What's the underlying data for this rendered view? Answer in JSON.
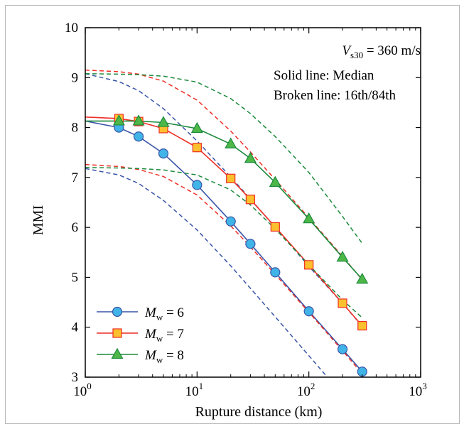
{
  "chart_data": {
    "type": "line",
    "xscale": "log",
    "xlim": [
      1,
      1000
    ],
    "ylim": [
      3,
      10
    ],
    "xlabel": "Rupture distance (km)",
    "ylabel": "MMI",
    "x_ticks": [
      {
        "value": 1,
        "base": "10",
        "exp": "0"
      },
      {
        "value": 10,
        "base": "10",
        "exp": "1"
      },
      {
        "value": 100,
        "base": "10",
        "exp": "2"
      },
      {
        "value": 1000,
        "base": "10",
        "exp": "3"
      }
    ],
    "y_ticks": [
      "3",
      "4",
      "5",
      "6",
      "7",
      "8",
      "9",
      "10"
    ],
    "annotations": {
      "vs30": {
        "var": "V",
        "sub": "s30",
        "rest": " = 360 m/s"
      },
      "solid": "Solid line: Median",
      "broken": "Broken line: 16th/84th"
    },
    "legend_position": "bottom-left",
    "series": [
      {
        "name": "Mw = 6",
        "legend": {
          "var": "M",
          "sub": "w",
          "rest": " = 6"
        },
        "color": "#3a55a8",
        "marker_fill": "#40b4e6",
        "marker": "circle",
        "curve_x": [
          1,
          2,
          3,
          5,
          10,
          20,
          30,
          50,
          100,
          200,
          300
        ],
        "median": [
          8.13,
          8.0,
          7.82,
          7.48,
          6.85,
          6.12,
          5.67,
          5.1,
          4.32,
          3.56,
          3.11
        ],
        "p84": [
          9.08,
          8.92,
          8.74,
          8.38,
          7.73,
          7.01,
          6.57,
          6.0,
          5.22,
          4.48,
          4.02
        ],
        "p16": [
          7.18,
          7.05,
          6.88,
          6.54,
          5.95,
          5.23,
          4.78,
          4.21,
          3.43,
          2.65,
          2.18
        ],
        "marker_x": [
          2,
          3,
          5,
          10,
          20,
          30,
          50,
          100,
          200,
          300
        ]
      },
      {
        "name": "Mw = 7",
        "legend": {
          "var": "M",
          "sub": "w",
          "rest": " = 7"
        },
        "color": "#ee2d24",
        "marker_fill": "#fbc02d",
        "marker": "square",
        "curve_x": [
          1,
          2,
          3,
          5,
          10,
          20,
          30,
          50,
          100,
          200,
          300
        ],
        "median": [
          8.21,
          8.18,
          8.12,
          7.98,
          7.6,
          6.98,
          6.56,
          6.01,
          5.25,
          4.48,
          4.03
        ],
        "p84": [
          9.15,
          9.12,
          9.07,
          8.93,
          8.55,
          7.93,
          7.51,
          6.96,
          6.19,
          5.42,
          4.95
        ],
        "p16": [
          7.26,
          7.22,
          7.16,
          7.02,
          6.65,
          6.03,
          5.61,
          5.06,
          4.3,
          3.53,
          3.07
        ],
        "marker_x": [
          2,
          3,
          5,
          10,
          20,
          30,
          50,
          100,
          200,
          300
        ]
      },
      {
        "name": "Mw = 8",
        "legend": {
          "var": "M",
          "sub": "w",
          "rest": " = 8"
        },
        "color": "#1c8a3c",
        "marker_fill": "#4db848",
        "marker": "triangle",
        "curve_x": [
          1,
          2,
          3,
          5,
          10,
          20,
          30,
          50,
          100,
          200,
          300
        ],
        "median": [
          8.13,
          8.13,
          8.13,
          8.1,
          7.98,
          7.67,
          7.38,
          6.9,
          6.17,
          5.4,
          4.96
        ],
        "p84": [
          9.08,
          9.07,
          9.06,
          9.03,
          8.91,
          8.58,
          8.28,
          7.82,
          7.1,
          6.22,
          5.68
        ],
        "p16": [
          7.2,
          7.19,
          7.18,
          7.15,
          7.05,
          6.75,
          6.45,
          5.97,
          5.25,
          4.55,
          4.19
        ],
        "marker_x": [
          2,
          3,
          5,
          10,
          20,
          30,
          50,
          100,
          200,
          300
        ]
      }
    ]
  }
}
